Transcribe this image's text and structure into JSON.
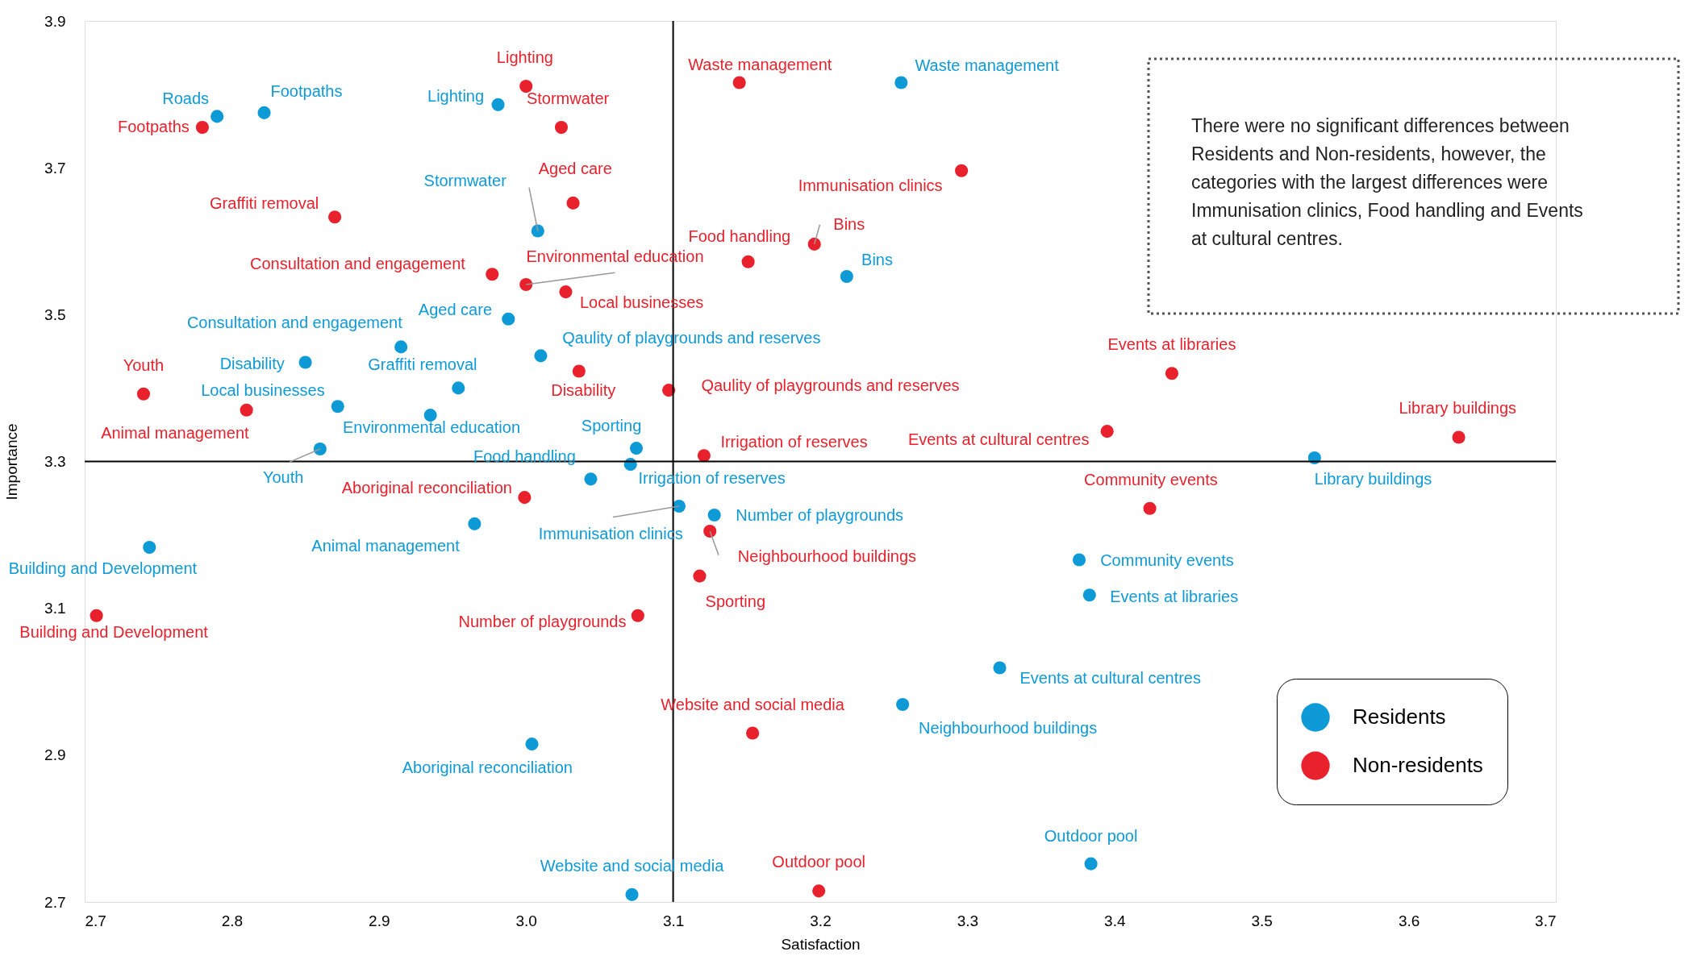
{
  "chart_data": {
    "type": "scatter",
    "xlabel": "Satisfaction",
    "ylabel": "Importance",
    "xlim": [
      2.7,
      3.7
    ],
    "ylim": [
      2.7,
      3.9
    ],
    "xticks": [
      2.7,
      2.8,
      2.9,
      {
        "value": 3,
        "label": "3.0"
      },
      3.1,
      3.2,
      3.3,
      3.4,
      3.5,
      3.6,
      3.7
    ],
    "yticks": [
      2.7,
      2.9,
      3.1,
      3.3,
      3.5,
      3.7,
      3.9
    ],
    "grid": false,
    "legend": "bottom right",
    "marker": "circle",
    "ref_lines": [
      {
        "axis": "x",
        "value": 3.1,
        "color": "#000000"
      },
      {
        "axis": "y",
        "value": 3.3,
        "color": "#000000"
      }
    ],
    "annotations": [
      "There were no significant differences between Residents and Non-residents, however, the categories with the largest differences were Immunisation clinics, Food handling and Events at cultural centres."
    ],
    "series": [
      {
        "name": "Residents",
        "color": "#0e9ad7",
        "x": [
          3.255,
          2.79,
          2.822,
          2.981,
          3.008,
          3.218,
          2.988,
          2.915,
          2.85,
          3.01,
          2.954,
          2.872,
          2.935,
          2.86,
          3.075,
          3.044,
          3.071,
          3.104,
          3.128,
          2.965,
          2.744,
          3.376,
          3.383,
          3.322,
          3.256,
          3.004,
          3.384,
          3.072,
          3.536
        ],
        "values": [
          3.816,
          3.77,
          3.775,
          3.786,
          3.614,
          3.552,
          3.494,
          3.456,
          3.435,
          3.444,
          3.4,
          3.375,
          3.363,
          3.317,
          3.318,
          3.276,
          3.296,
          3.239,
          3.227,
          3.215,
          3.183,
          3.166,
          3.118,
          3.019,
          2.969,
          2.915,
          2.752,
          2.71,
          3.305
        ],
        "value_labels": [
          "Waste management",
          "Roads",
          "Footpaths",
          "Lighting",
          "Stormwater",
          "Bins",
          "Aged care",
          "Consultation and engagement",
          "Disability",
          "Qaulity of playgrounds and reserves",
          "Graffiti removal",
          "Local businesses",
          "Environmental education",
          "Youth",
          "Sporting",
          "Food handling",
          "Irrigation of reserves",
          "Immunisation clinics",
          "Number of playgrounds",
          "Animal management",
          "Building and Development",
          "Community events",
          "Events at libraries",
          "Events at cultural centres",
          "Neighbourhood buildings",
          "Aboriginal reconciliation",
          "Outdoor pool",
          "Website and social media",
          "Library buildings"
        ]
      },
      {
        "name": "Non-residents",
        "color": "#e8212c",
        "x": [
          3.0,
          3.145,
          2.78,
          3.024,
          3.296,
          3.032,
          2.87,
          3.196,
          3.151,
          2.977,
          3.0,
          3.027,
          3.439,
          3.036,
          2.74,
          3.097,
          2.81,
          3.395,
          3.634,
          3.121,
          2.999,
          3.424,
          3.125,
          3.118,
          2.708,
          3.076,
          3.154,
          3.199
        ],
        "values": [
          3.811,
          3.816,
          3.755,
          3.755,
          3.696,
          3.652,
          3.633,
          3.596,
          3.572,
          3.555,
          3.541,
          3.531,
          3.42,
          3.423,
          3.392,
          3.397,
          3.37,
          3.341,
          3.333,
          3.308,
          3.251,
          3.236,
          3.205,
          3.144,
          3.09,
          3.09,
          2.93,
          2.715
        ],
        "value_labels": [
          "Lighting",
          "Waste management",
          "Footpaths",
          "Stormwater",
          "Immunisation clinics",
          "Aged care",
          "Graffiti removal",
          "Bins",
          "Food handling",
          "Consultation and engagement",
          "Environmental education",
          "Local businesses",
          "Events at libraries",
          "Disability",
          "Youth",
          "Qaulity of playgrounds and reserves",
          "Animal management",
          "Events at cultural centres",
          "Library buildings",
          "Irrigation of reserves",
          "Aboriginal reconciliation",
          "Community events",
          "Neighbourhood buildings",
          "Sporting",
          "Building and Development",
          "Number of playgrounds",
          "Website and social media",
          "Outdoor pool"
        ]
      }
    ]
  }
}
